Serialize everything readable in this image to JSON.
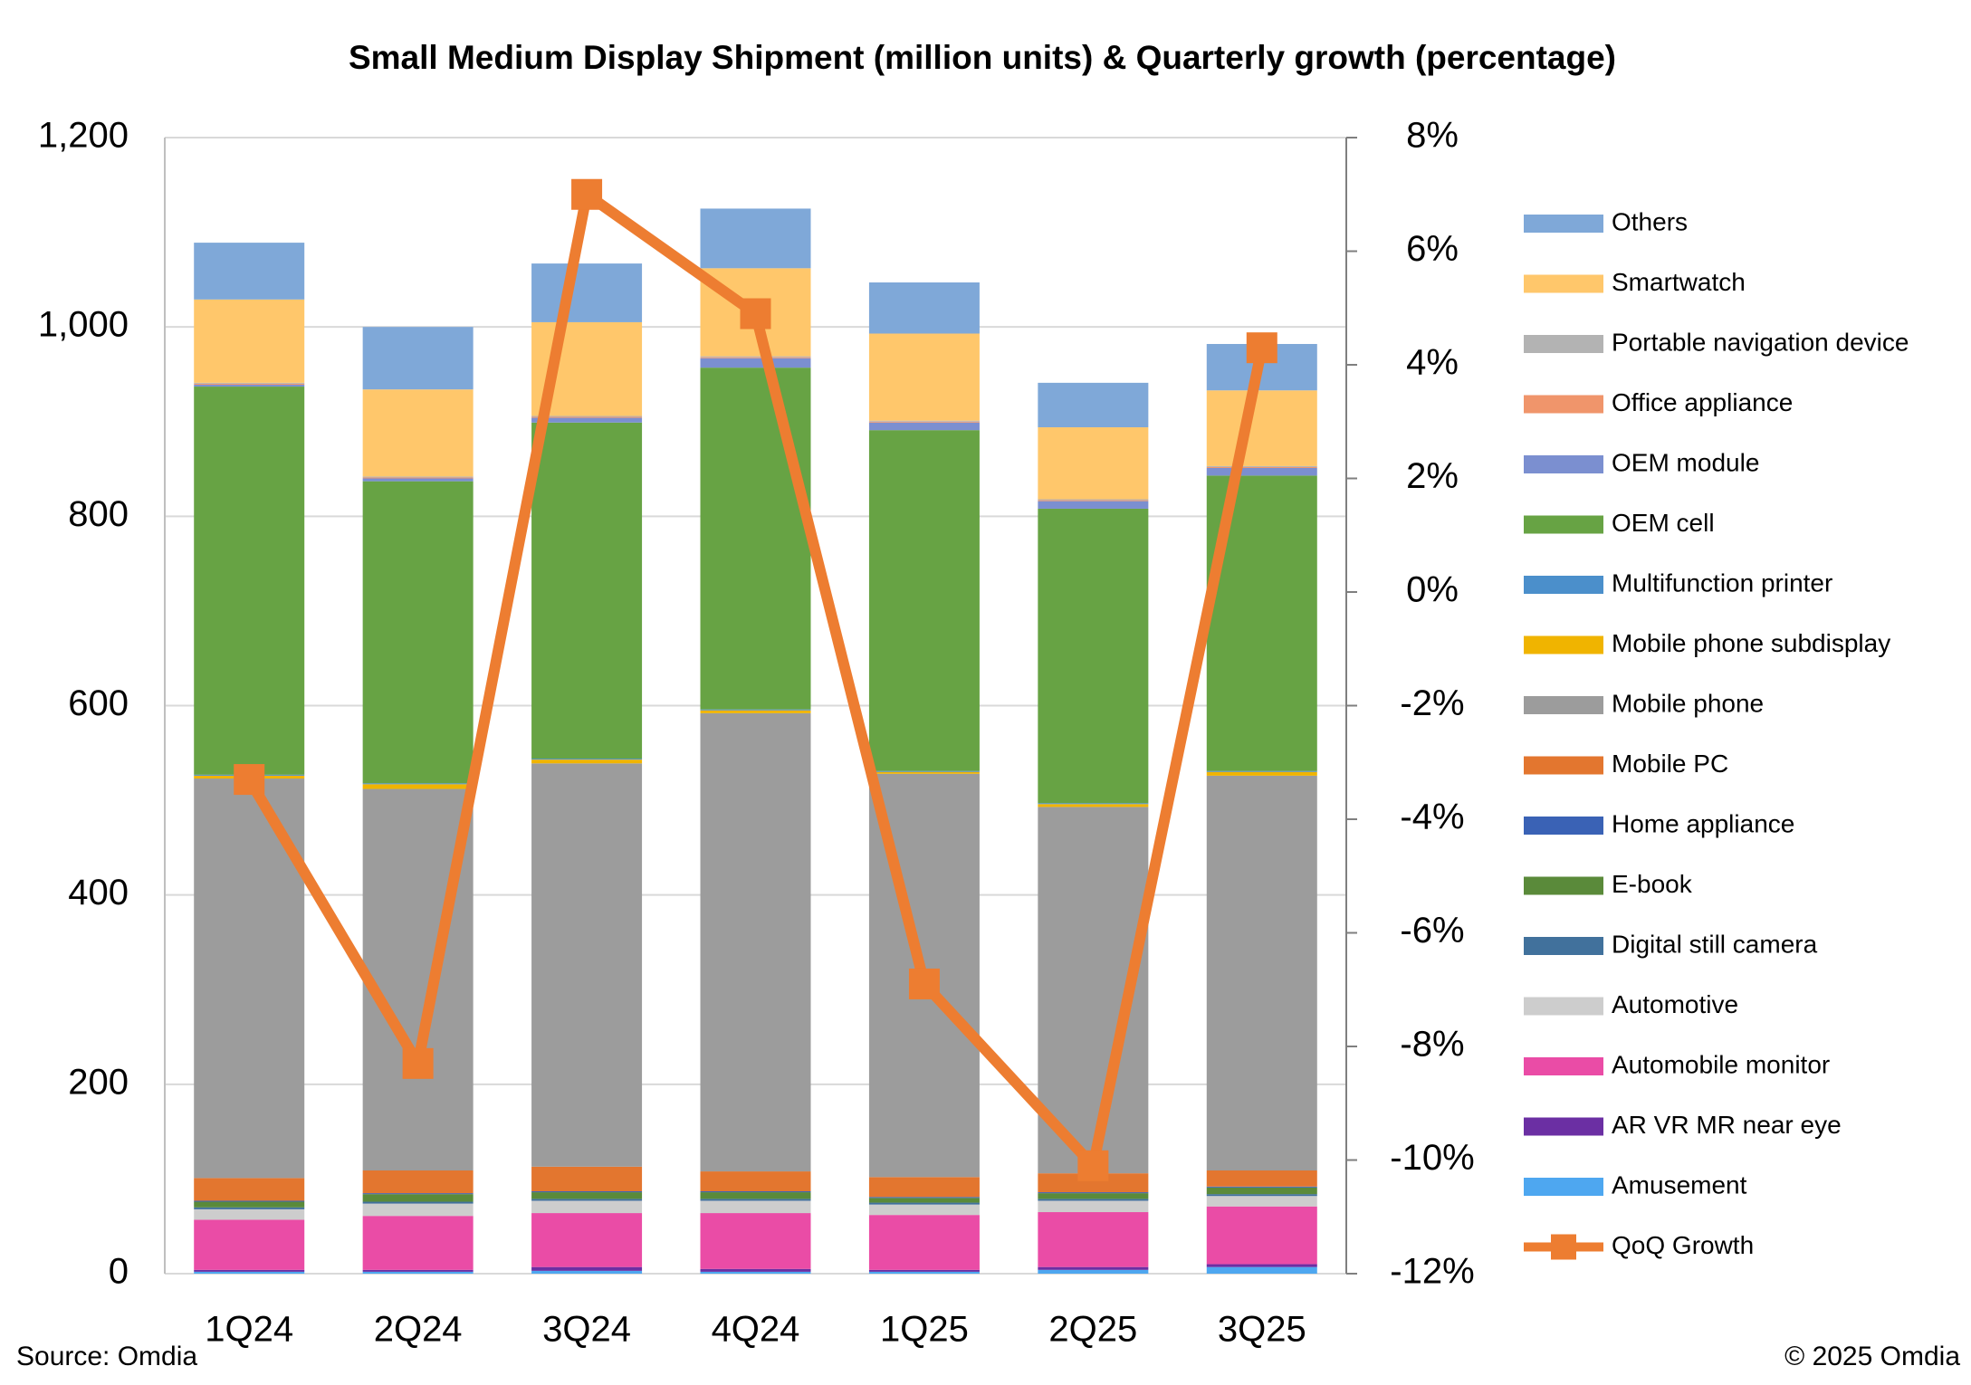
{
  "chart_data": {
    "type": "bar",
    "stacked": true,
    "title": "Small Medium Display Shipment (million units) & Quarterly growth (percentage)",
    "source": "Source: Omdia",
    "copyright": "© 2025 Omdia",
    "categories": [
      "1Q24",
      "2Q24",
      "3Q24",
      "4Q24",
      "1Q25",
      "2Q25",
      "3Q25"
    ],
    "ylim": [
      0,
      1200
    ],
    "yticks": [
      {
        "value": 0,
        "label": "0"
      },
      {
        "value": 200,
        "label": "200"
      },
      {
        "value": 400,
        "label": "400"
      },
      {
        "value": 600,
        "label": "600"
      },
      {
        "value": 800,
        "label": "800"
      },
      {
        "value": 1000,
        "label": "1,000"
      },
      {
        "value": 1200,
        "label": "1,200"
      }
    ],
    "y2lim": [
      -12,
      8
    ],
    "y2ticks": [
      {
        "value": -12,
        "label": "-12%"
      },
      {
        "value": -10,
        "label": "-10%"
      },
      {
        "value": -8,
        "label": "-8%"
      },
      {
        "value": -6,
        "label": "-6%"
      },
      {
        "value": -4,
        "label": "-4%"
      },
      {
        "value": -2,
        "label": "-2%"
      },
      {
        "value": 0,
        "label": "0%"
      },
      {
        "value": 2,
        "label": "2%"
      },
      {
        "value": 4,
        "label": "4%"
      },
      {
        "value": 6,
        "label": "6%"
      },
      {
        "value": 8,
        "label": "8%"
      }
    ],
    "grid": true,
    "legend": "right",
    "series": [
      {
        "name": "Amusement",
        "color": "#4ea7f0",
        "values": [
          2,
          2,
          3,
          2,
          2,
          4,
          7
        ]
      },
      {
        "name": "AR VR MR near eye",
        "color": "#6b2fa3",
        "values": [
          2,
          2,
          4,
          3,
          2,
          3,
          3
        ]
      },
      {
        "name": "Automobile monitor",
        "color": "#ea4ca6",
        "values": [
          53,
          57,
          57,
          59,
          58,
          58,
          61
        ]
      },
      {
        "name": "Automotive",
        "color": "#cdcdcd",
        "values": [
          11,
          13,
          13,
          13,
          11,
          12,
          11
        ]
      },
      {
        "name": "Digital still camera",
        "color": "#41719c",
        "values": [
          2,
          2,
          2,
          2,
          2,
          2,
          2
        ]
      },
      {
        "name": "E-book",
        "color": "#5a8a3a",
        "values": [
          6,
          8,
          7,
          7,
          5,
          6,
          7
        ]
      },
      {
        "name": "Home appliance",
        "color": "#3a62b5",
        "values": [
          1,
          1,
          1,
          1,
          1,
          1,
          1
        ]
      },
      {
        "name": "Mobile PC",
        "color": "#e3762f",
        "values": [
          24,
          24,
          26,
          21,
          21,
          20,
          17
        ]
      },
      {
        "name": "Mobile phone",
        "color": "#9c9c9c",
        "values": [
          422,
          403,
          426,
          484,
          426,
          387,
          417
        ]
      },
      {
        "name": "Mobile phone subdisplay",
        "color": "#f0b400",
        "values": [
          3,
          5,
          4,
          3,
          2,
          3,
          4
        ]
      },
      {
        "name": "Multifunction printer",
        "color": "#4b8fcb",
        "values": [
          1,
          1,
          1,
          1,
          1,
          1,
          1
        ]
      },
      {
        "name": "OEM cell",
        "color": "#67a344",
        "values": [
          410,
          319,
          355,
          361,
          360,
          311,
          312
        ]
      },
      {
        "name": "OEM module",
        "color": "#7b8fd0",
        "values": [
          2,
          3,
          5,
          10,
          8,
          8,
          8
        ]
      },
      {
        "name": "Office appliance",
        "color": "#f0956b",
        "values": [
          1,
          1,
          1,
          1,
          1,
          1,
          1
        ]
      },
      {
        "name": "Portable navigation device",
        "color": "#b3b3b3",
        "values": [
          1,
          1,
          1,
          1,
          1,
          1,
          1
        ]
      },
      {
        "name": "Smartwatch",
        "color": "#ffc76b",
        "values": [
          88,
          92,
          99,
          93,
          92,
          76,
          80
        ]
      },
      {
        "name": "Others",
        "color": "#7fa8d8",
        "values": [
          60,
          66,
          62,
          63,
          54,
          47,
          49
        ]
      },
      {
        "name": "QoQ Growth",
        "color": "#ed7d31",
        "type": "line",
        "axis": "y2",
        "values": [
          -3.3,
          -8.3,
          7.0,
          4.9,
          -6.9,
          -10.1,
          4.3
        ]
      }
    ]
  }
}
